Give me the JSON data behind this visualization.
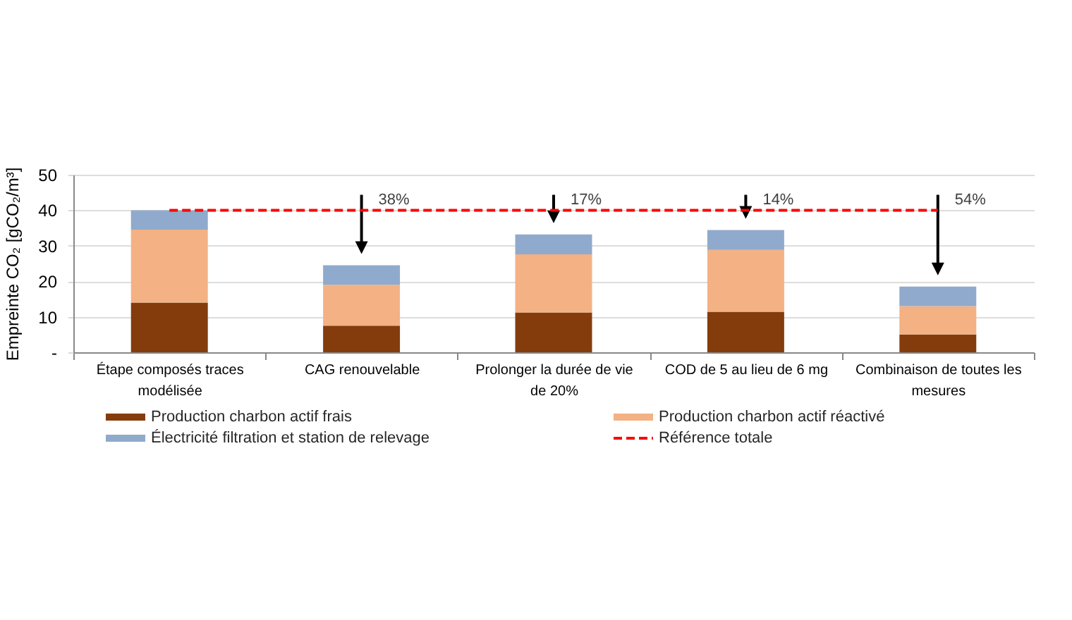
{
  "chart_data": {
    "type": "bar",
    "stacked": true,
    "ylabel": "Empreinte CO₂ [gCO₂/m³]",
    "categories": [
      "Étape composés traces modélisée",
      "CAG renouvelable",
      "Prolonger la durée de vie de 20%",
      "COD de 5 au lieu de 6 mg",
      "Combinaison de toutes les mesures"
    ],
    "series": [
      {
        "name": "Production charbon actif frais",
        "color": "#843c0c",
        "values": [
          14,
          7.5,
          11.2,
          11.4,
          5
        ]
      },
      {
        "name": "Production charbon actif réactivé",
        "color": "#f4b183",
        "values": [
          20.5,
          11.5,
          16.4,
          17.4,
          8
        ]
      },
      {
        "name": "Électricité filtration et station de relevage",
        "color": "#8faacc",
        "values": [
          5.5,
          5.5,
          5.6,
          5.6,
          5.5
        ]
      },
      {
        "name": "Référence totale",
        "type": "line",
        "color": "#ff0000",
        "line_style": "dashed",
        "values": [
          40,
          40,
          40,
          40,
          40
        ]
      }
    ],
    "ylim": [
      0,
      50
    ],
    "yticks": [
      {
        "value": 0,
        "label": "-"
      },
      10,
      20,
      30,
      40,
      50
    ],
    "grid": "y",
    "legend": "bottom",
    "annotations": [
      {
        "text": "38%",
        "x": "CAG renouvelable",
        "y": 40
      },
      {
        "text": "17%",
        "x": "Prolonger la durée de vie de 20%",
        "y": 40
      },
      {
        "text": "14%",
        "x": "COD de 5 au lieu de 6 mg",
        "y": 40
      },
      {
        "text": "54%",
        "x": "Combinaison de toutes les mesures",
        "y": 40
      }
    ]
  }
}
